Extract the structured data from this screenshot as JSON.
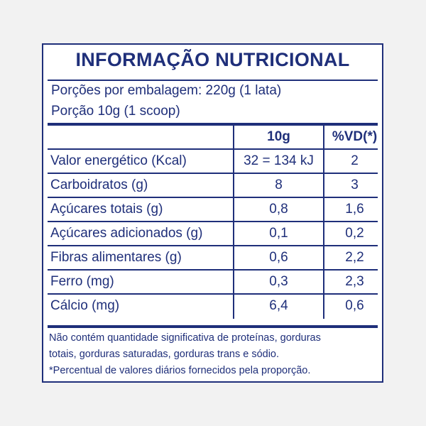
{
  "title": "INFORMAÇÃO NUTRICIONAL",
  "servings_per_package": "Porções por embalagem: 220g (1 lata)",
  "serving_size": "Porção 10g (1 scoop)",
  "columns": {
    "amount": "10g",
    "daily_value": "%VD(*)"
  },
  "rows": [
    {
      "nutrient": "Valor energético (Kcal)",
      "amount": "32 = 134 kJ",
      "dv": "2"
    },
    {
      "nutrient": "Carboidratos (g)",
      "amount": "8",
      "dv": "3"
    },
    {
      "nutrient": "Açúcares totais (g)",
      "amount": "0,8",
      "dv": "1,6"
    },
    {
      "nutrient": "Açúcares adicionados (g)",
      "amount": "0,1",
      "dv": "0,2"
    },
    {
      "nutrient": "Fibras alimentares (g)",
      "amount": "0,6",
      "dv": "2,2"
    },
    {
      "nutrient": "Ferro (mg)",
      "amount": "0,3",
      "dv": "2,3"
    },
    {
      "nutrient": "Cálcio (mg)",
      "amount": "6,4",
      "dv": "0,6"
    }
  ],
  "footnotes": [
    "Não contém quantidade significativa de proteínas, gorduras",
    "totais, gorduras saturadas, gorduras trans e sódio.",
    "*Percentual de valores diários fornecidos pela proporção."
  ],
  "colors": {
    "ink": "#1f2f7a",
    "background": "#f2f2f2",
    "panel": "#ffffff"
  }
}
